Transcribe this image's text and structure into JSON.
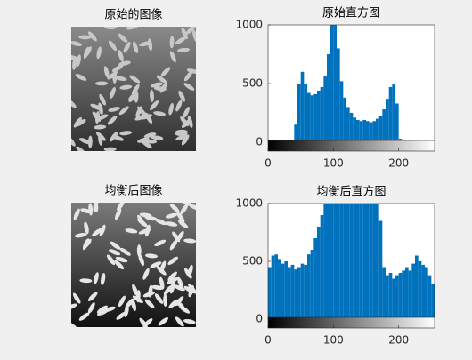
{
  "images": [
    {
      "title": "原始的图像"
    },
    {
      "title": "均衡后图像"
    }
  ],
  "chart_data": [
    {
      "type": "histogram",
      "title": "原始直方图",
      "color": "#0072bd",
      "bins": [
        0,
        5,
        10,
        15,
        20,
        25,
        30,
        35,
        40,
        45,
        50,
        55,
        60,
        65,
        70,
        75,
        80,
        85,
        90,
        95,
        100,
        105,
        110,
        115,
        120,
        125,
        130,
        135,
        140,
        145,
        150,
        155,
        160,
        165,
        170,
        175,
        180,
        185,
        190,
        195,
        200,
        205,
        210,
        215,
        220,
        225,
        230,
        235,
        240,
        245,
        250,
        255
      ],
      "counts": [
        0,
        0,
        0,
        0,
        0,
        0,
        0,
        0,
        150,
        500,
        600,
        500,
        420,
        400,
        410,
        440,
        470,
        560,
        750,
        1000,
        1000,
        800,
        520,
        380,
        300,
        250,
        210,
        190,
        180,
        190,
        180,
        170,
        180,
        200,
        220,
        280,
        370,
        470,
        500,
        330,
        30,
        0,
        0,
        0,
        0,
        0,
        0,
        0,
        0,
        0,
        0
      ],
      "xlim": [
        0,
        255
      ],
      "ylim": [
        0,
        1000
      ],
      "xticks": [
        0,
        100,
        200
      ],
      "yticks": [
        0,
        500,
        1000
      ]
    },
    {
      "type": "histogram",
      "title": "均衡后直方图",
      "color": "#0072bd",
      "bins": [
        0,
        5,
        10,
        15,
        20,
        25,
        30,
        35,
        40,
        45,
        50,
        55,
        60,
        65,
        70,
        75,
        80,
        85,
        90,
        95,
        100,
        105,
        110,
        115,
        120,
        125,
        130,
        135,
        140,
        145,
        150,
        155,
        160,
        165,
        170,
        175,
        180,
        185,
        190,
        195,
        200,
        205,
        210,
        215,
        220,
        225,
        230,
        235,
        240,
        245,
        250,
        255
      ],
      "counts": [
        450,
        550,
        560,
        520,
        480,
        500,
        450,
        470,
        430,
        450,
        480,
        470,
        560,
        600,
        700,
        800,
        900,
        1000,
        1000,
        1000,
        1000,
        1000,
        1000,
        1000,
        1000,
        1000,
        1000,
        1000,
        1000,
        1000,
        1000,
        1000,
        1000,
        1000,
        850,
        450,
        380,
        400,
        350,
        380,
        400,
        420,
        450,
        420,
        480,
        550,
        500,
        470,
        450,
        380,
        300
      ],
      "xlim": [
        0,
        255
      ],
      "ylim": [
        0,
        1000
      ],
      "xticks": [
        0,
        100,
        200
      ],
      "yticks": [
        0,
        500,
        1000
      ]
    }
  ]
}
